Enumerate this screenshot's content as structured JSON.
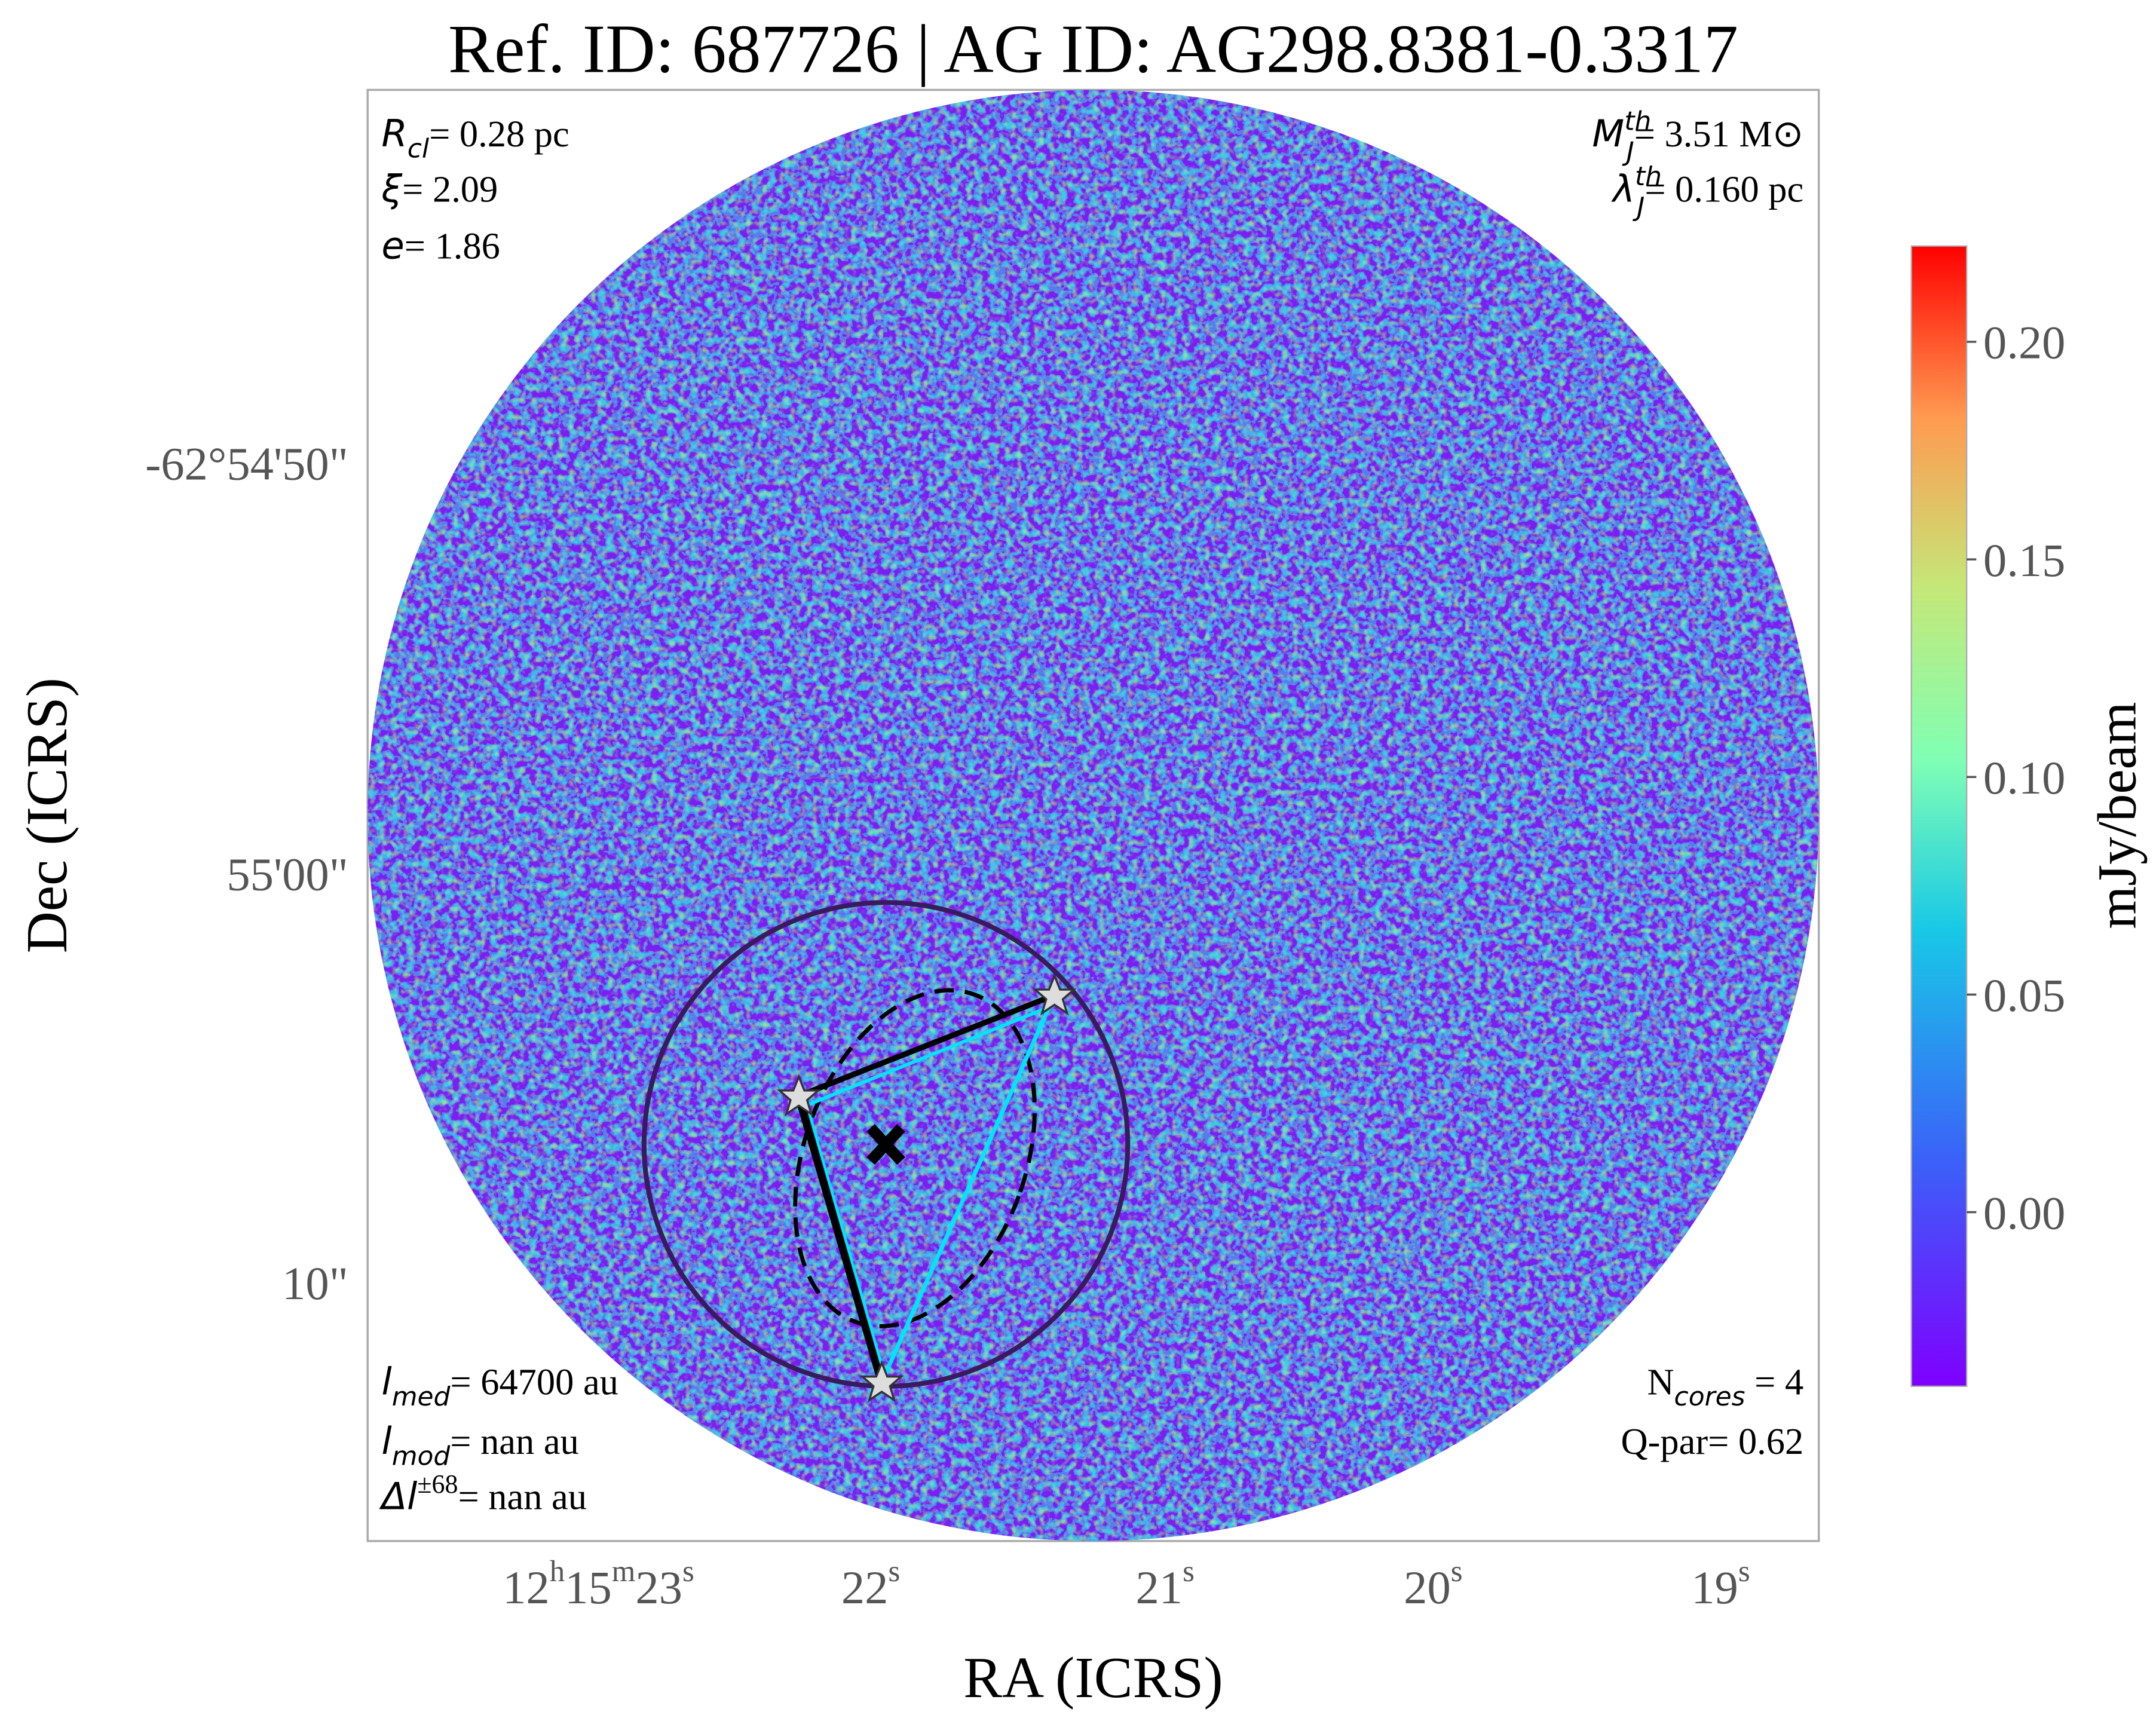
{
  "chart_data": {
    "type": "map",
    "title": "Ref. ID: 687726 | AG ID: AG298.8381-0.3317",
    "x_label": "RA (ICRS)",
    "y_label": "Dec (ICRS)",
    "xticks": [
      [
        "12",
        "h",
        "15",
        "m",
        "23",
        "s"
      ],
      [
        "22",
        "s"
      ],
      [
        "21",
        "s"
      ],
      [
        "20",
        "s"
      ],
      [
        "19",
        "s"
      ]
    ],
    "yticks": [
      "-62°54'50\"",
      "55'00\"",
      "10\""
    ],
    "colorbar": {
      "label": "mJy/beam",
      "lim": [
        -0.04,
        0.222
      ],
      "ticks": [
        {
          "value": 0,
          "label": "0.00"
        },
        {
          "value": 0.05,
          "label": "0.05"
        },
        {
          "value": 0.1,
          "label": "0.10"
        },
        {
          "value": 0.15,
          "label": "0.15"
        },
        {
          "value": 0.2,
          "label": "0.20"
        }
      ]
    },
    "annotations": {
      "top_left": [
        {
          "sym": "R",
          "sub": "cl",
          "text": "= 0.28 pc"
        },
        {
          "sym": "ξ",
          "text": "= 2.09"
        },
        {
          "sym": "e",
          "text": "= 1.86"
        }
      ],
      "top_right": [
        {
          "sym": "M",
          "sub": "J",
          "sup": "th",
          "text": "= 3.51 M⊙"
        },
        {
          "sym": "λ",
          "sub": "J",
          "sup": "th",
          "text": "= 0.160 pc"
        }
      ],
      "bottom_left": [
        {
          "sym": "l",
          "sub": "med",
          "text": "= 64700 au"
        },
        {
          "sym": "l",
          "sub": "mod",
          "text": "= nan au"
        },
        {
          "sym": "Δl",
          "sup": "±68",
          "text": "= nan au"
        }
      ],
      "bottom_right": [
        {
          "text": "N",
          "sub": "cores",
          "tail": " = 4"
        },
        {
          "text": "Q-par= 0.62"
        }
      ]
    }
  }
}
